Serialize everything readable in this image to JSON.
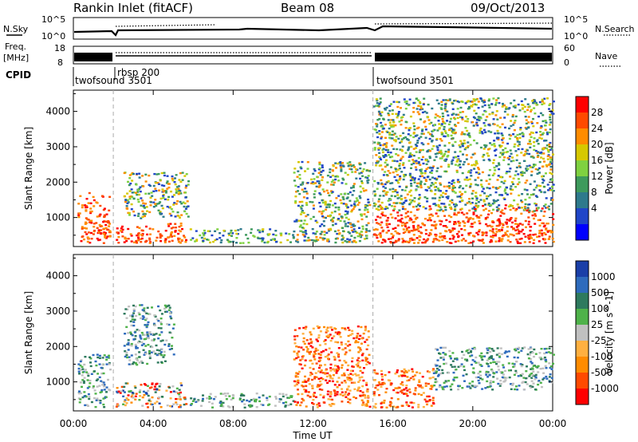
{
  "header": {
    "station": "Rankin Inlet (fitACF)",
    "beam": "Beam 08",
    "date": "09/Oct/2013"
  },
  "summary": {
    "nsky_label": "N.Sky",
    "nsky_ticks": [
      "10^5",
      "10^0"
    ],
    "nsearch_label": "N.Search",
    "nsearch_ticks": [
      "10^5",
      "10^0"
    ],
    "freq_label_1": "Freq.",
    "freq_label_2": "[MHz]",
    "freq_ticks": [
      "18",
      "8"
    ],
    "nave_label": "Nave",
    "nave_ticks": [
      "60",
      "0"
    ],
    "cpid_label": "CPID",
    "cpid_segments": [
      {
        "label": "twofsound 3501",
        "start_h": 0.0,
        "end_h": 2.0
      },
      {
        "label": "rbsp 200",
        "start_h": 2.0,
        "end_h": 15.0
      },
      {
        "label": "twofsound 3501",
        "start_h": 15.0,
        "end_h": 24.0
      }
    ]
  },
  "chart_data": [
    {
      "type": "heatmap",
      "title": "",
      "xlabel": "",
      "ylabel": "Slant Range [km]",
      "xlim": [
        0,
        24
      ],
      "ylim": [
        180,
        4600
      ],
      "yticks": [
        1000,
        2000,
        3000,
        4000
      ],
      "colorbar_label": "Power [dB]",
      "colorbar_ticks": [
        "28",
        "24",
        "20",
        "16",
        "12",
        "8",
        "4"
      ],
      "colorbar_colors": [
        "#ff0000",
        "#ff4a00",
        "#ff8c00",
        "#d6c800",
        "#7fd140",
        "#3e9a5c",
        "#2e7a8c",
        "#2046c8",
        "#0000ff"
      ],
      "echo_regions": [
        {
          "t0": 0.2,
          "t1": 1.8,
          "r0": 300,
          "r1": 1800,
          "level": "high"
        },
        {
          "t0": 2.1,
          "t1": 5.6,
          "r0": 300,
          "r1": 900,
          "level": "high"
        },
        {
          "t0": 2.5,
          "t1": 5.8,
          "r0": 1000,
          "r1": 2300,
          "level": "mid"
        },
        {
          "t0": 5.8,
          "t1": 11.0,
          "r0": 300,
          "r1": 700,
          "level": "low"
        },
        {
          "t0": 11.0,
          "t1": 14.8,
          "r0": 300,
          "r1": 2600,
          "level": "mid"
        },
        {
          "t0": 15.0,
          "t1": 24.0,
          "r0": 300,
          "r1": 1400,
          "level": "high"
        },
        {
          "t0": 15.0,
          "t1": 24.0,
          "r0": 1200,
          "r1": 4400,
          "level": "mid"
        }
      ]
    },
    {
      "type": "heatmap",
      "title": "",
      "xlabel": "Time UT",
      "ylabel": "Slant Range [km]",
      "xlim": [
        0,
        24
      ],
      "ylim": [
        180,
        4600
      ],
      "yticks": [
        1000,
        2000,
        3000,
        4000
      ],
      "xticks": [
        "00:00",
        "04:00",
        "08:00",
        "12:00",
        "16:00",
        "20:00",
        "00:00"
      ],
      "colorbar_label": "Velocity [m s^-1]",
      "colorbar_ticks": [
        "1000",
        "500",
        "100",
        "25",
        "-25",
        "-100",
        "-500",
        "-1000"
      ],
      "colorbar_colors": [
        "#1a3fa8",
        "#2e6bbd",
        "#2e7a5e",
        "#4fb24a",
        "#c0c0c0",
        "#ffb040",
        "#ff8c00",
        "#ff4a00",
        "#ff0000"
      ],
      "echo_regions": [
        {
          "t0": 0.2,
          "t1": 1.8,
          "r0": 300,
          "r1": 1800,
          "level": "pos"
        },
        {
          "t0": 2.1,
          "t1": 5.6,
          "r0": 300,
          "r1": 1000,
          "level": "mixed"
        },
        {
          "t0": 2.5,
          "t1": 5.0,
          "r0": 1500,
          "r1": 3200,
          "level": "pos"
        },
        {
          "t0": 5.8,
          "t1": 11.0,
          "r0": 300,
          "r1": 700,
          "level": "pos"
        },
        {
          "t0": 11.0,
          "t1": 14.8,
          "r0": 300,
          "r1": 2600,
          "level": "neg"
        },
        {
          "t0": 15.0,
          "t1": 18.0,
          "r0": 300,
          "r1": 1400,
          "level": "neg"
        },
        {
          "t0": 18.0,
          "t1": 24.0,
          "r0": 800,
          "r1": 2000,
          "level": "pos"
        }
      ]
    }
  ]
}
